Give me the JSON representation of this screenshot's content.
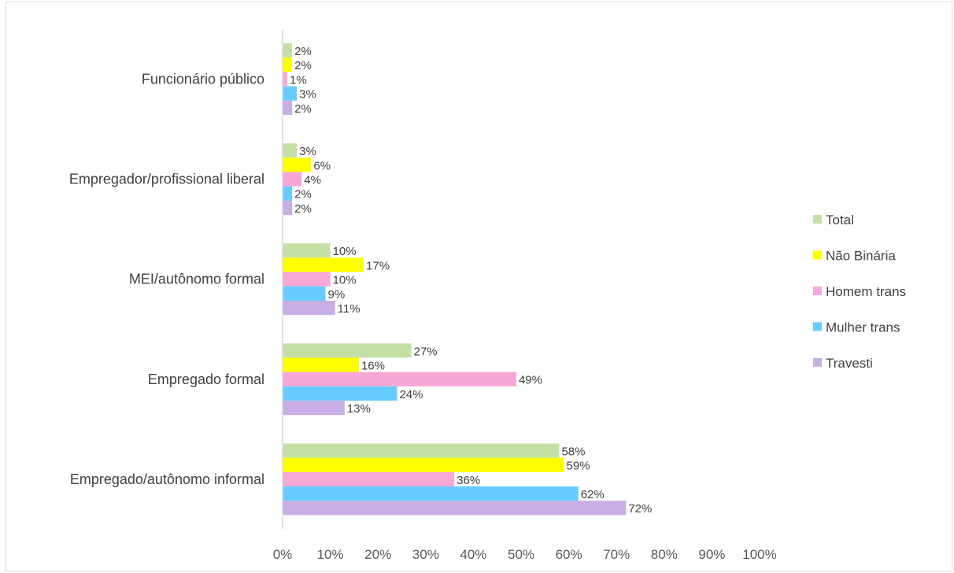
{
  "chart_data": {
    "type": "bar",
    "orientation": "horizontal",
    "categories": [
      "Funcionário público",
      "Empregador/profissional liberal",
      "MEI/autônomo formal",
      "Empregado formal",
      "Empregado/autônomo informal"
    ],
    "series": [
      {
        "name": "Total",
        "color": "#c5e0a5",
        "values": [
          2,
          3,
          10,
          27,
          58
        ],
        "labels": [
          "2%",
          "3%",
          "10%",
          "27%",
          "58%"
        ]
      },
      {
        "name": "Não Binária",
        "color": "#ffff00",
        "values": [
          2,
          6,
          17,
          16,
          59
        ],
        "labels": [
          "2%",
          "6%",
          "17%",
          "16%",
          "59%"
        ]
      },
      {
        "name": "Homem trans",
        "color": "#f9a6d8",
        "values": [
          1,
          4,
          10,
          49,
          36
        ],
        "labels": [
          "1%",
          "4%",
          "10%",
          "49%",
          "36%"
        ]
      },
      {
        "name": "Mulher trans",
        "color": "#66ccff",
        "values": [
          3,
          2,
          9,
          24,
          62
        ],
        "labels": [
          "3%",
          "2%",
          "9%",
          "24%",
          "62%"
        ]
      },
      {
        "name": "Travesti",
        "color": "#c8aee5",
        "values": [
          2,
          2,
          11,
          13,
          72
        ],
        "labels": [
          "2%",
          "2%",
          "11%",
          "13%",
          "72%"
        ]
      }
    ],
    "xlim": [
      0,
      100
    ],
    "x_ticks": [
      "0%",
      "10%",
      "20%",
      "30%",
      "40%",
      "50%",
      "60%",
      "70%",
      "80%",
      "90%",
      "100%"
    ],
    "legend_position": "right",
    "grid": false,
    "title": "",
    "xlabel": "",
    "ylabel": ""
  }
}
